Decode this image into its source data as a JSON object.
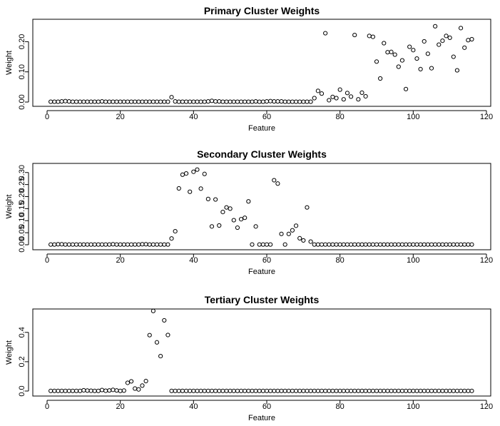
{
  "chart_data": [
    {
      "type": "scatter",
      "title": "Primary Cluster Weights",
      "xlabel": "Feature",
      "ylabel": "Weight",
      "xlim": [
        0,
        120
      ],
      "ylim": [
        0,
        0.26
      ],
      "xticks": [
        0,
        20,
        40,
        60,
        80,
        100,
        120
      ],
      "xtick_labels": [
        "0",
        "20",
        "40",
        "60",
        "80",
        "100",
        "120"
      ],
      "yticks": [
        0,
        0.1,
        0.2
      ],
      "ytick_labels": [
        "0.00",
        "0.10",
        "0.20"
      ],
      "x_start": 1,
      "values": [
        0.001,
        0.001,
        0.001,
        0.002,
        0.003,
        0.002,
        0.001,
        0.001,
        0.001,
        0.001,
        0.001,
        0.001,
        0.001,
        0.001,
        0.002,
        0.001,
        0.001,
        0.001,
        0.001,
        0.001,
        0.001,
        0.001,
        0.001,
        0.001,
        0.001,
        0.001,
        0.001,
        0.001,
        0.001,
        0.001,
        0.001,
        0.001,
        0.001,
        0.016,
        0.002,
        0.001,
        0.001,
        0.001,
        0.001,
        0.001,
        0.001,
        0.001,
        0.001,
        0.002,
        0.004,
        0.002,
        0.002,
        0.001,
        0.001,
        0.001,
        0.001,
        0.001,
        0.001,
        0.001,
        0.001,
        0.001,
        0.002,
        0.001,
        0.001,
        0.002,
        0.003,
        0.002,
        0.002,
        0.002,
        0.001,
        0.001,
        0.001,
        0.001,
        0.001,
        0.001,
        0.001,
        0.001,
        0.013,
        0.037,
        0.028,
        0.228,
        0.006,
        0.017,
        0.013,
        0.041,
        0.009,
        0.03,
        0.018,
        0.222,
        0.009,
        0.031,
        0.019,
        0.219,
        0.216,
        0.134,
        0.078,
        0.195,
        0.165,
        0.166,
        0.157,
        0.117,
        0.138,
        0.043,
        0.183,
        0.172,
        0.144,
        0.109,
        0.201,
        0.16,
        0.112,
        0.251,
        0.19,
        0.203,
        0.219,
        0.213,
        0.15,
        0.105,
        0.245,
        0.18,
        0.205,
        0.208
      ]
    },
    {
      "type": "scatter",
      "title": "Secondary Cluster Weights",
      "xlabel": "Feature",
      "ylabel": "Weight",
      "xlim": [
        0,
        120
      ],
      "ylim": [
        0,
        0.32
      ],
      "xticks": [
        0,
        20,
        40,
        60,
        80,
        100,
        120
      ],
      "xtick_labels": [
        "0",
        "20",
        "40",
        "60",
        "80",
        "100",
        "120"
      ],
      "yticks": [
        0,
        0.05,
        0.1,
        0.15,
        0.2,
        0.25,
        0.3
      ],
      "ytick_labels": [
        "0.00",
        "0.05",
        "0.10",
        "0.15",
        "0.20",
        "0.25",
        "0.30"
      ],
      "x_start": 1,
      "values": [
        0.001,
        0.001,
        0.002,
        0.002,
        0.001,
        0.001,
        0.001,
        0.001,
        0.001,
        0.001,
        0.001,
        0.001,
        0.001,
        0.001,
        0.001,
        0.001,
        0.001,
        0.002,
        0.001,
        0.001,
        0.001,
        0.001,
        0.001,
        0.001,
        0.001,
        0.002,
        0.002,
        0.001,
        0.001,
        0.001,
        0.001,
        0.001,
        0.001,
        0.026,
        0.056,
        0.234,
        0.291,
        0.296,
        0.22,
        0.303,
        0.312,
        0.233,
        0.294,
        0.19,
        0.076,
        0.188,
        0.08,
        0.136,
        0.155,
        0.15,
        0.102,
        0.071,
        0.106,
        0.112,
        0.18,
        0.001,
        0.076,
        0.001,
        0.001,
        0.001,
        0.001,
        0.268,
        0.254,
        0.045,
        0.001,
        0.045,
        0.06,
        0.079,
        0.027,
        0.018,
        0.155,
        0.013,
        0.001,
        0.001,
        0.001,
        0.001,
        0.001,
        0.001,
        0.001,
        0.001,
        0.001,
        0.001,
        0.001,
        0.001,
        0.001,
        0.001,
        0.001,
        0.001,
        0.001,
        0.001,
        0.001,
        0.001,
        0.001,
        0.001,
        0.001,
        0.001,
        0.001,
        0.001,
        0.001,
        0.001,
        0.001,
        0.001,
        0.001,
        0.001,
        0.001,
        0.001,
        0.001,
        0.001,
        0.001,
        0.001,
        0.001,
        0.001,
        0.001,
        0.001,
        0.001,
        0.001
      ]
    },
    {
      "type": "scatter",
      "title": "Tertiary Cluster Weights",
      "xlabel": "Feature",
      "ylabel": "Weight",
      "xlim": [
        0,
        120
      ],
      "ylim": [
        0,
        0.54
      ],
      "xticks": [
        0,
        20,
        40,
        60,
        80,
        100,
        120
      ],
      "xtick_labels": [
        "0",
        "20",
        "40",
        "60",
        "80",
        "100",
        "120"
      ],
      "yticks": [
        0,
        0.2,
        0.4
      ],
      "ytick_labels": [
        "0.0",
        "0.2",
        "0.4"
      ],
      "x_start": 1,
      "values": [
        0.001,
        0.001,
        0.001,
        0.001,
        0.001,
        0.001,
        0.001,
        0.001,
        0.001,
        0.005,
        0.003,
        0.002,
        0.001,
        0.001,
        0.007,
        0.002,
        0.004,
        0.008,
        0.004,
        0.001,
        0.003,
        0.056,
        0.066,
        0.017,
        0.011,
        0.037,
        0.068,
        0.381,
        0.546,
        0.332,
        0.238,
        0.482,
        0.382,
        0.001,
        0.001,
        0.001,
        0.001,
        0.001,
        0.001,
        0.001,
        0.001,
        0.001,
        0.001,
        0.001,
        0.001,
        0.001,
        0.001,
        0.001,
        0.001,
        0.001,
        0.001,
        0.001,
        0.001,
        0.001,
        0.001,
        0.001,
        0.001,
        0.001,
        0.001,
        0.001,
        0.001,
        0.001,
        0.001,
        0.001,
        0.001,
        0.001,
        0.001,
        0.001,
        0.001,
        0.001,
        0.001,
        0.001,
        0.001,
        0.001,
        0.001,
        0.001,
        0.001,
        0.001,
        0.001,
        0.001,
        0.001,
        0.001,
        0.001,
        0.001,
        0.001,
        0.001,
        0.001,
        0.001,
        0.001,
        0.001,
        0.001,
        0.001,
        0.001,
        0.001,
        0.001,
        0.001,
        0.001,
        0.001,
        0.001,
        0.001,
        0.001,
        0.001,
        0.001,
        0.001,
        0.001,
        0.001,
        0.001,
        0.001,
        0.001,
        0.001,
        0.001,
        0.001,
        0.001,
        0.001,
        0.001,
        0.001
      ]
    }
  ]
}
